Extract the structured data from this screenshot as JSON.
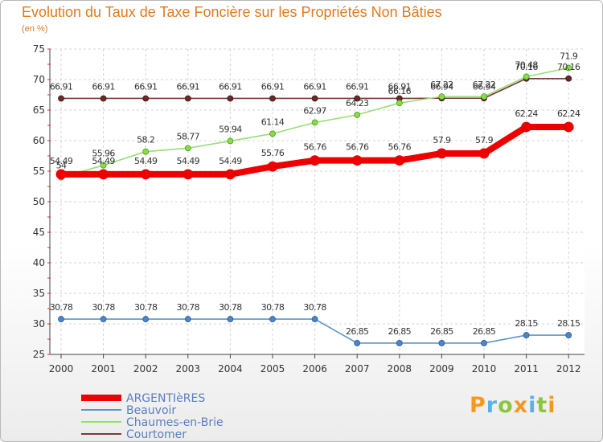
{
  "chart_data": {
    "type": "line",
    "title": "Evolution du Taux de Taxe Foncière sur les Propriétés Non Bâties",
    "subtitle": "(en %)",
    "xlabel": "",
    "ylabel": "",
    "x": [
      "2000",
      "2001",
      "2002",
      "2003",
      "2004",
      "2005",
      "2006",
      "2007",
      "2008",
      "2009",
      "2010",
      "2011",
      "2012"
    ],
    "ylim": [
      25,
      75
    ],
    "yticks": [
      "25",
      "30",
      "35",
      "40",
      "45",
      "50",
      "55",
      "60",
      "65",
      "70",
      "75"
    ],
    "grid": true,
    "legend_position": "bottom-left",
    "series": [
      {
        "name": "ARGENTIèRES",
        "color": "#ee0000",
        "values": [
          54.49,
          54.49,
          54.49,
          54.49,
          54.49,
          55.76,
          56.76,
          56.76,
          56.76,
          57.9,
          57.9,
          62.24,
          62.24
        ],
        "labels": [
          "54.49",
          "54.49",
          "54.49",
          "54.49",
          "54.49",
          "55.76",
          "56.76",
          "56.76",
          "56.76",
          "57.9",
          "57.9",
          "62.24",
          "62.24"
        ]
      },
      {
        "name": "Beauvoir",
        "color": "#5a96c8",
        "values": [
          30.78,
          30.78,
          30.78,
          30.78,
          30.78,
          30.78,
          30.78,
          26.85,
          26.85,
          26.85,
          26.85,
          28.15,
          28.15
        ],
        "labels": [
          "30.78",
          "30.78",
          "30.78",
          "30.78",
          "30.78",
          "30.78",
          "30.78",
          "26.85",
          "26.85",
          "26.85",
          "26.85",
          "28.15",
          "28.15"
        ]
      },
      {
        "name": "Chaumes-en-Brie",
        "color": "#99dd77",
        "values": [
          54,
          55.96,
          58.2,
          58.77,
          59.94,
          61.14,
          62.97,
          64.23,
          66.16,
          67.22,
          67.22,
          70.48,
          71.9
        ],
        "labels": [
          "54",
          "55.96",
          "58.2",
          "58.77",
          "59.94",
          "61.14",
          "62.97",
          "64.23",
          "66.16",
          "67.22",
          "67.22",
          "70.48",
          "71.9"
        ]
      },
      {
        "name": "Courtomer",
        "color": "#7a3a3a",
        "values": [
          66.91,
          66.91,
          66.91,
          66.91,
          66.91,
          66.91,
          66.91,
          66.91,
          66.91,
          66.94,
          66.94,
          70.16,
          70.16
        ],
        "labels": [
          "66.91",
          "66.91",
          "66.91",
          "66.91",
          "66.91",
          "66.91",
          "66.91",
          "66.91",
          "66.91",
          "66.94",
          "66.94",
          "70.16",
          "70.16"
        ]
      }
    ]
  },
  "logo": {
    "text": "Proxiti",
    "letters": [
      "P",
      "r",
      "o",
      "x",
      "i",
      "t",
      "i"
    ]
  }
}
